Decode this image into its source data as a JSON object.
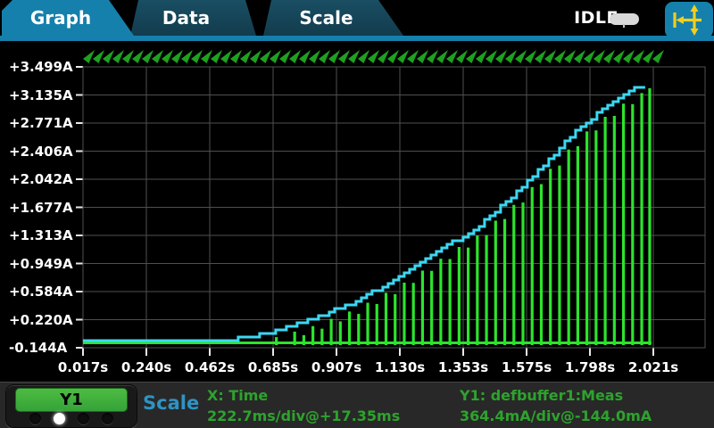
{
  "header": {
    "tabs": [
      {
        "label": "Graph",
        "active": true
      },
      {
        "label": "Data",
        "active": false
      },
      {
        "label": "Scale",
        "active": false
      }
    ],
    "status": "IDLE",
    "icons": {
      "terminal_indicator": "front-terminal-pill",
      "pan_scale": "pan-scale-arrows"
    }
  },
  "chart_data": {
    "type": "line",
    "title": "",
    "xlabel": "Time",
    "ylabel": "defbuffer1:Meas (A)",
    "grid": true,
    "legend": false,
    "x_axis": {
      "start_s": 0.01735,
      "s_per_div": 0.2227,
      "tick_labels": [
        "0.017s",
        "0.240s",
        "0.462s",
        "0.685s",
        "0.907s",
        "1.130s",
        "1.353s",
        "1.575s",
        "1.798s",
        "2.021s"
      ]
    },
    "y_axis": {
      "bottom_a": -0.144,
      "a_per_div": 0.3644,
      "tick_labels": [
        "+3.499A",
        "+3.135A",
        "+2.771A",
        "+2.406A",
        "+2.042A",
        "+1.677A",
        "+1.313A",
        "+0.949A",
        "+0.584A",
        "+0.220A",
        "-0.144A"
      ]
    },
    "series": [
      {
        "name": "envelope-staircase",
        "color": "#3bd8f2",
        "style": "staircase",
        "points": [
          [
            0.017,
            -0.04
          ],
          [
            0.557,
            -0.04
          ],
          [
            0.667,
            0.03
          ],
          [
            0.823,
            0.203
          ],
          [
            0.98,
            0.434
          ],
          [
            1.137,
            0.747
          ],
          [
            1.294,
            1.128
          ],
          [
            1.419,
            1.418
          ],
          [
            1.545,
            1.822
          ],
          [
            1.67,
            2.285
          ],
          [
            1.774,
            2.69
          ],
          [
            1.88,
            3.002
          ],
          [
            1.937,
            3.141
          ],
          [
            1.974,
            3.222
          ],
          [
            2.009,
            3.257
          ]
        ]
      },
      {
        "name": "defbuffer1-meas-pulses",
        "color": "#2ce42c",
        "style": "pulse-comb",
        "baseline_a": -0.075,
        "pulse_period_s": 0.0321,
        "pulse_range_s": [
          0.055,
          2.009
        ]
      }
    ],
    "markers": {
      "shape": "triangle-down",
      "color": "#1da11f",
      "position": "top-band",
      "span_s": [
        0.017,
        2.02
      ]
    }
  },
  "footer": {
    "y1_button": "Y1",
    "page_dots": {
      "count": 4,
      "active_index": 1
    },
    "swipe_title": "Scale",
    "x_info_line1": "X: Time",
    "x_info_line2": "222.7ms/div@+17.35ms",
    "y_info_line1": "Y1: defbuffer1:Meas",
    "y_info_line2": "364.4mA/div@-144.0mA"
  },
  "colors": {
    "tab_active": "#1580ac",
    "tab_inactive": "#15445a",
    "trace_cyan": "#3bd8f2",
    "trace_green": "#2ce42c",
    "marker_green": "#1da11f",
    "grid": "#4f4f4f",
    "footer_green": "#2da32d",
    "footer_cyan": "#2e93c4",
    "y1_button_green": "#41b13d"
  }
}
